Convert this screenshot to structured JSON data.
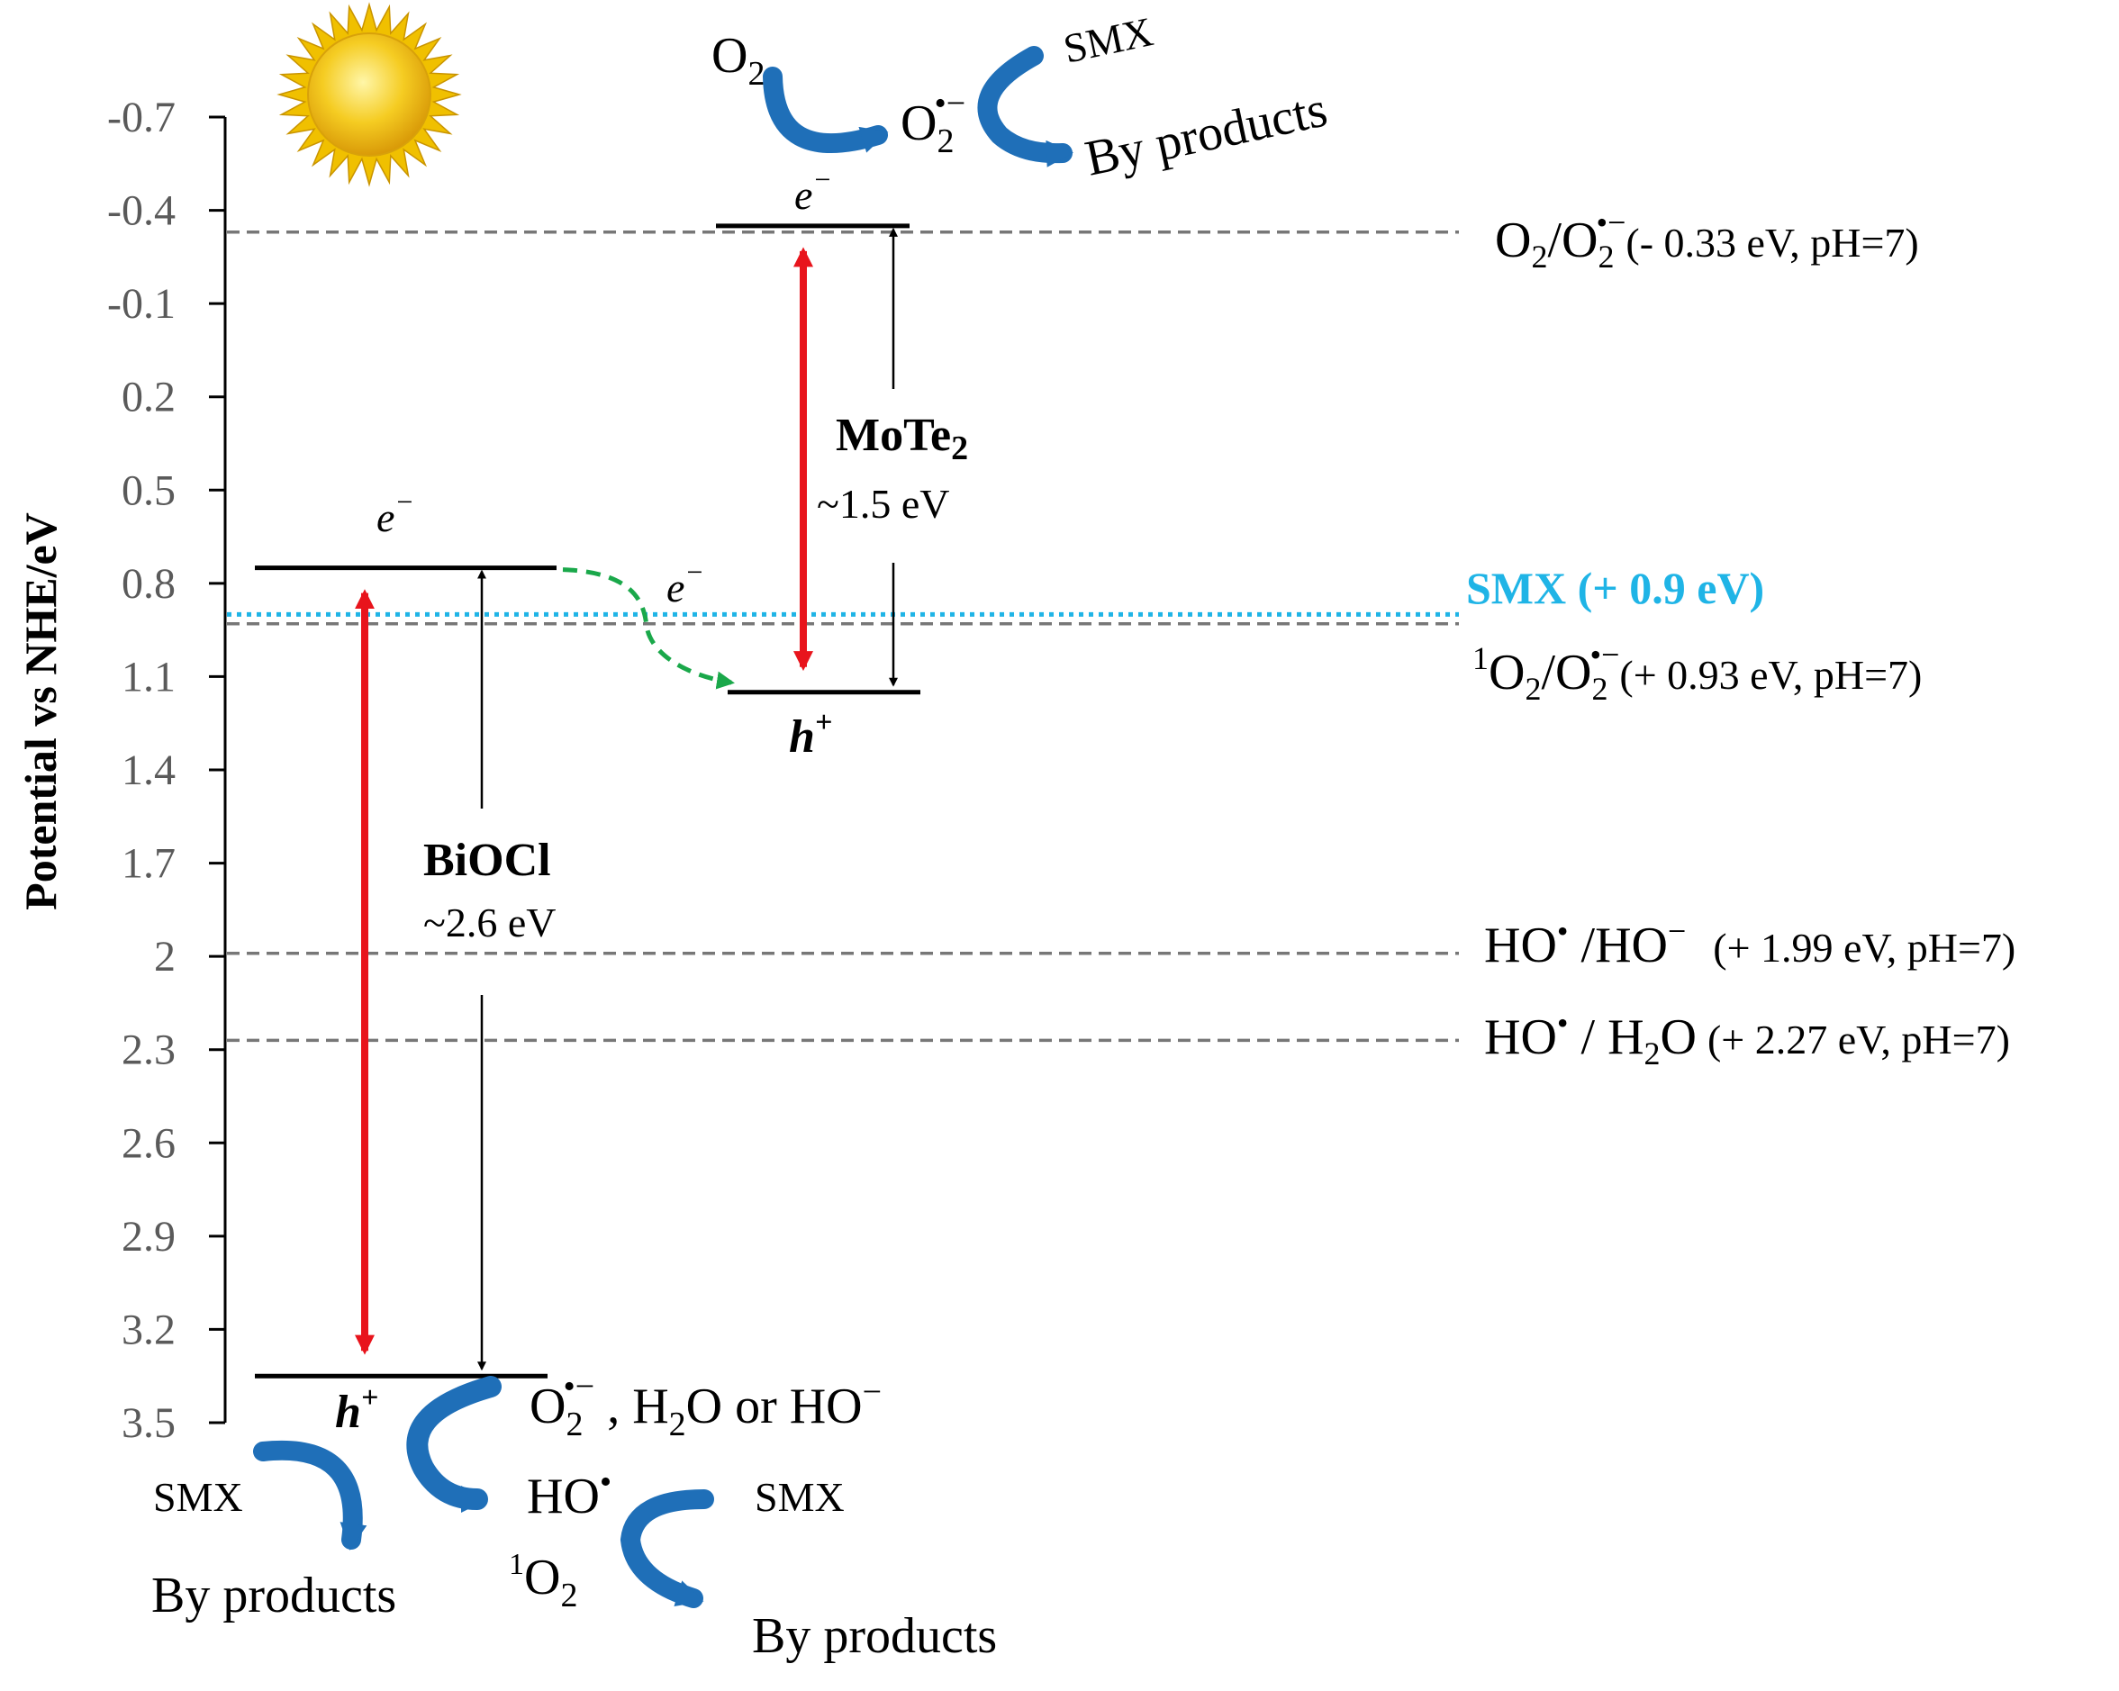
{
  "chart_data": {
    "type": "energy-band-diagram",
    "ylabel": "Potential vs NHE/eV",
    "yticks": [
      "-0.7",
      "-0.4",
      "-0.1",
      "0.2",
      "0.5",
      "0.8",
      "1.1",
      "1.4",
      "1.7",
      "2",
      "2.3",
      "2.6",
      "2.9",
      "3.2",
      "3.5"
    ],
    "y_axis_inverted": true,
    "semiconductors": [
      {
        "name": "BiOCl",
        "gap_label": "~2.6 eV",
        "cb": 0.75,
        "vb": 3.35,
        "electron": "e",
        "hole": "h"
      },
      {
        "name": "MoTe",
        "name_sub": "2",
        "gap_label": "~1.5 eV",
        "cb": -0.35,
        "vb": 1.15,
        "electron": "e",
        "hole": "h"
      }
    ],
    "reference_levels": [
      {
        "value": -0.33,
        "label": "(- 0.33 eV, pH=7)",
        "color": "#777777"
      },
      {
        "value": 0.9,
        "label": "SMX (+ 0.9 eV)",
        "color": "#1fb4e6"
      },
      {
        "value": 0.93,
        "label": "(+ 0.93 eV, pH=7)",
        "color": "#777777"
      },
      {
        "value": 1.99,
        "label": "(+ 1.99 eV, pH=7)",
        "color": "#777777"
      },
      {
        "value": 2.27,
        "label": "(+ 2.27 eV, pH=7)",
        "color": "#777777"
      }
    ],
    "reaction_labels": {
      "o2": "O",
      "o2_sub": "2",
      "superoxide": "O",
      "superoxide_sub": "2",
      "superoxide_sup": "•−",
      "smx": "SMX",
      "byproducts": "By products",
      "h2o_or_ho": "H",
      "h2o_or_ho_rest": "O or HO",
      "ho_radical": "HO",
      "singlet_o2": "O",
      "singlet_sup": "1",
      "ho_minus": "HO",
      "h2o": "H",
      "h2o_rest": "O"
    },
    "colors": {
      "excitation_arrow": "#e8141c",
      "transfer_arrow": "#1aa84a",
      "curved_arrow": "#1f6fb8",
      "sun": "#f2c21a"
    }
  }
}
